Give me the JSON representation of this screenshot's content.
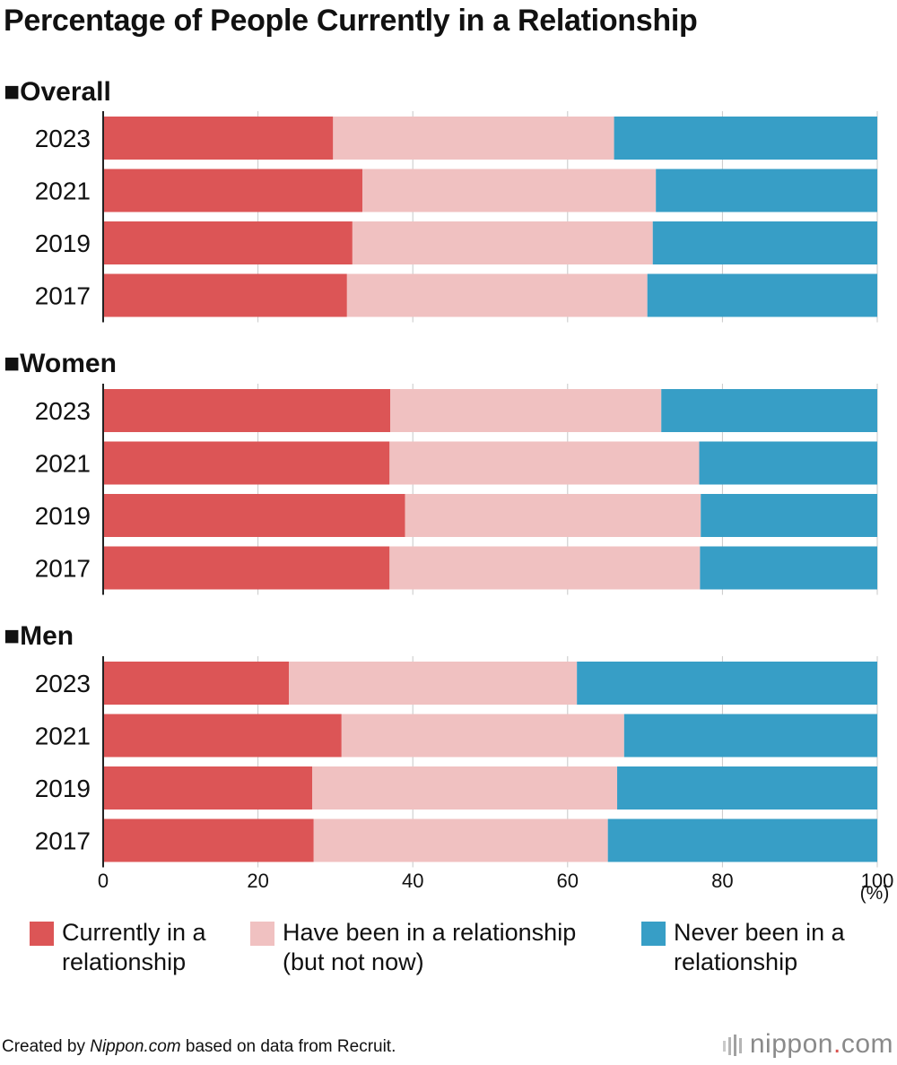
{
  "title": "Percentage of People Currently in a Relationship",
  "chart_data": {
    "type": "bar",
    "orientation": "horizontal",
    "stacked": true,
    "xlim": [
      0,
      100
    ],
    "x_ticks": [
      "0",
      "20",
      "40",
      "60",
      "80",
      "100"
    ],
    "unit_label": "(%)",
    "series_names": [
      "Currently in a relationship",
      "Have been in a relationship (but not now)",
      "Never been in a relationship"
    ],
    "colors": [
      "#dc5556",
      "#f0c1c1",
      "#379ec6"
    ],
    "panels": [
      {
        "name": "Overall",
        "title": "■Overall",
        "categories": [
          "2023",
          "2021",
          "2019",
          "2017"
        ],
        "series": [
          {
            "name": "Currently in a relationship",
            "values": [
              29.7,
              33.5,
              32.2,
              31.5
            ]
          },
          {
            "name": "Have been in a relationship (but not now)",
            "values": [
              36.3,
              37.9,
              38.8,
              38.8
            ]
          },
          {
            "name": "Never been in a relationship",
            "values": [
              34.0,
              28.6,
              29.0,
              29.7
            ]
          }
        ]
      },
      {
        "name": "Women",
        "title": "■Women",
        "categories": [
          "2023",
          "2021",
          "2019",
          "2017"
        ],
        "series": [
          {
            "name": "Currently in a relationship",
            "values": [
              37.1,
              37.0,
              39.0,
              37.0
            ]
          },
          {
            "name": "Have been in a relationship (but not now)",
            "values": [
              35.0,
              40.0,
              38.2,
              40.1
            ]
          },
          {
            "name": "Never been in a relationship",
            "values": [
              27.9,
              23.0,
              22.8,
              22.9
            ]
          }
        ]
      },
      {
        "name": "Men",
        "title": "■Men",
        "categories": [
          "2023",
          "2021",
          "2019",
          "2017"
        ],
        "series": [
          {
            "name": "Currently in a relationship",
            "values": [
              24.0,
              30.8,
              27.0,
              27.2
            ]
          },
          {
            "name": "Have been in a relationship (but not now)",
            "values": [
              37.2,
              36.5,
              39.4,
              38.0
            ]
          },
          {
            "name": "Never been in a relationship",
            "values": [
              38.8,
              32.7,
              33.6,
              34.8
            ]
          }
        ]
      }
    ]
  },
  "legend": [
    {
      "label": "Currently in a\nrelationship"
    },
    {
      "label": "Have been in a relationship\n(but not now)"
    },
    {
      "label": "Never been in a\nrelationship"
    }
  ],
  "footer": {
    "prefix": "Created by ",
    "site": "Nippon.com",
    "suffix": " based on data from Recruit."
  },
  "logo": {
    "brand": "nippon",
    "dot": ".",
    "tld": "com"
  }
}
